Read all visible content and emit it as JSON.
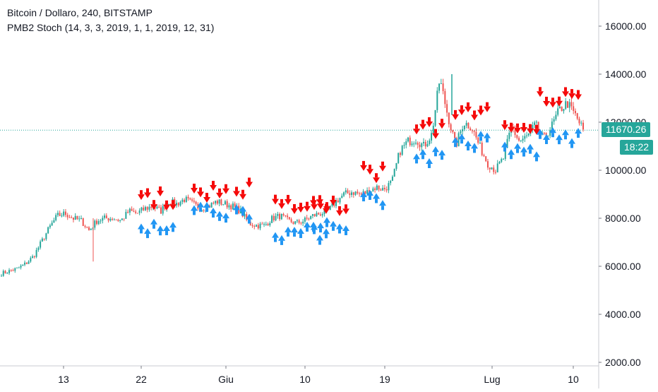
{
  "legend": {
    "symbol": "Bitcoin / Dollaro, 240, BITSTAMP",
    "indicator": "PMB2 Stoch (14, 3, 3, 2019, 1, 1, 2019, 12, 31)"
  },
  "price_axis": {
    "current_price": "11670.26",
    "countdown": "18:22"
  },
  "colors": {
    "up": "#26a69a",
    "down": "#ef5350",
    "buy_arrow": "#2196f3",
    "sell_arrow": "#f50a0a",
    "price_tag": "#26a69a",
    "grid_axis": "#787b86"
  },
  "chart_data": {
    "type": "candlestick",
    "title": "Bitcoin / Dollaro, 240, BITSTAMP",
    "y_ticks": [
      "2000.00",
      "4000.00",
      "6000.00",
      "8000.00",
      "10000.00",
      "12000.00",
      "14000.00",
      "16000.00"
    ],
    "ylim": [
      2000,
      16600
    ],
    "x_ticks": [
      "13",
      "22",
      "Giu",
      "10",
      "19",
      "Lug",
      "10"
    ],
    "close_series_approx": [
      5700,
      5800,
      5900,
      6100,
      6400,
      7000,
      7600,
      8100,
      8200,
      8000,
      7900,
      7500,
      7900,
      8000,
      8000,
      7900,
      8300,
      8200,
      8400,
      8500,
      8300,
      8700,
      8600,
      8800,
      8600,
      8400,
      8500,
      8700,
      8600,
      8500,
      8300,
      7800,
      7700,
      7700,
      8000,
      8100,
      7900,
      7800,
      7900,
      8100,
      8200,
      8300,
      8700,
      9000,
      9100,
      9000,
      9100,
      9300,
      9200,
      9500,
      10800,
      11200,
      11300,
      11000,
      11500,
      13800,
      12300,
      11000,
      12000,
      11800,
      11000,
      10300,
      10000,
      10500,
      11800,
      11200,
      11400,
      11900,
      11300,
      11800,
      12500,
      12800,
      12300,
      11670
    ],
    "annotations": "PMB2 Stoch buy (blue up) and sell (red down) arrow signals"
  }
}
